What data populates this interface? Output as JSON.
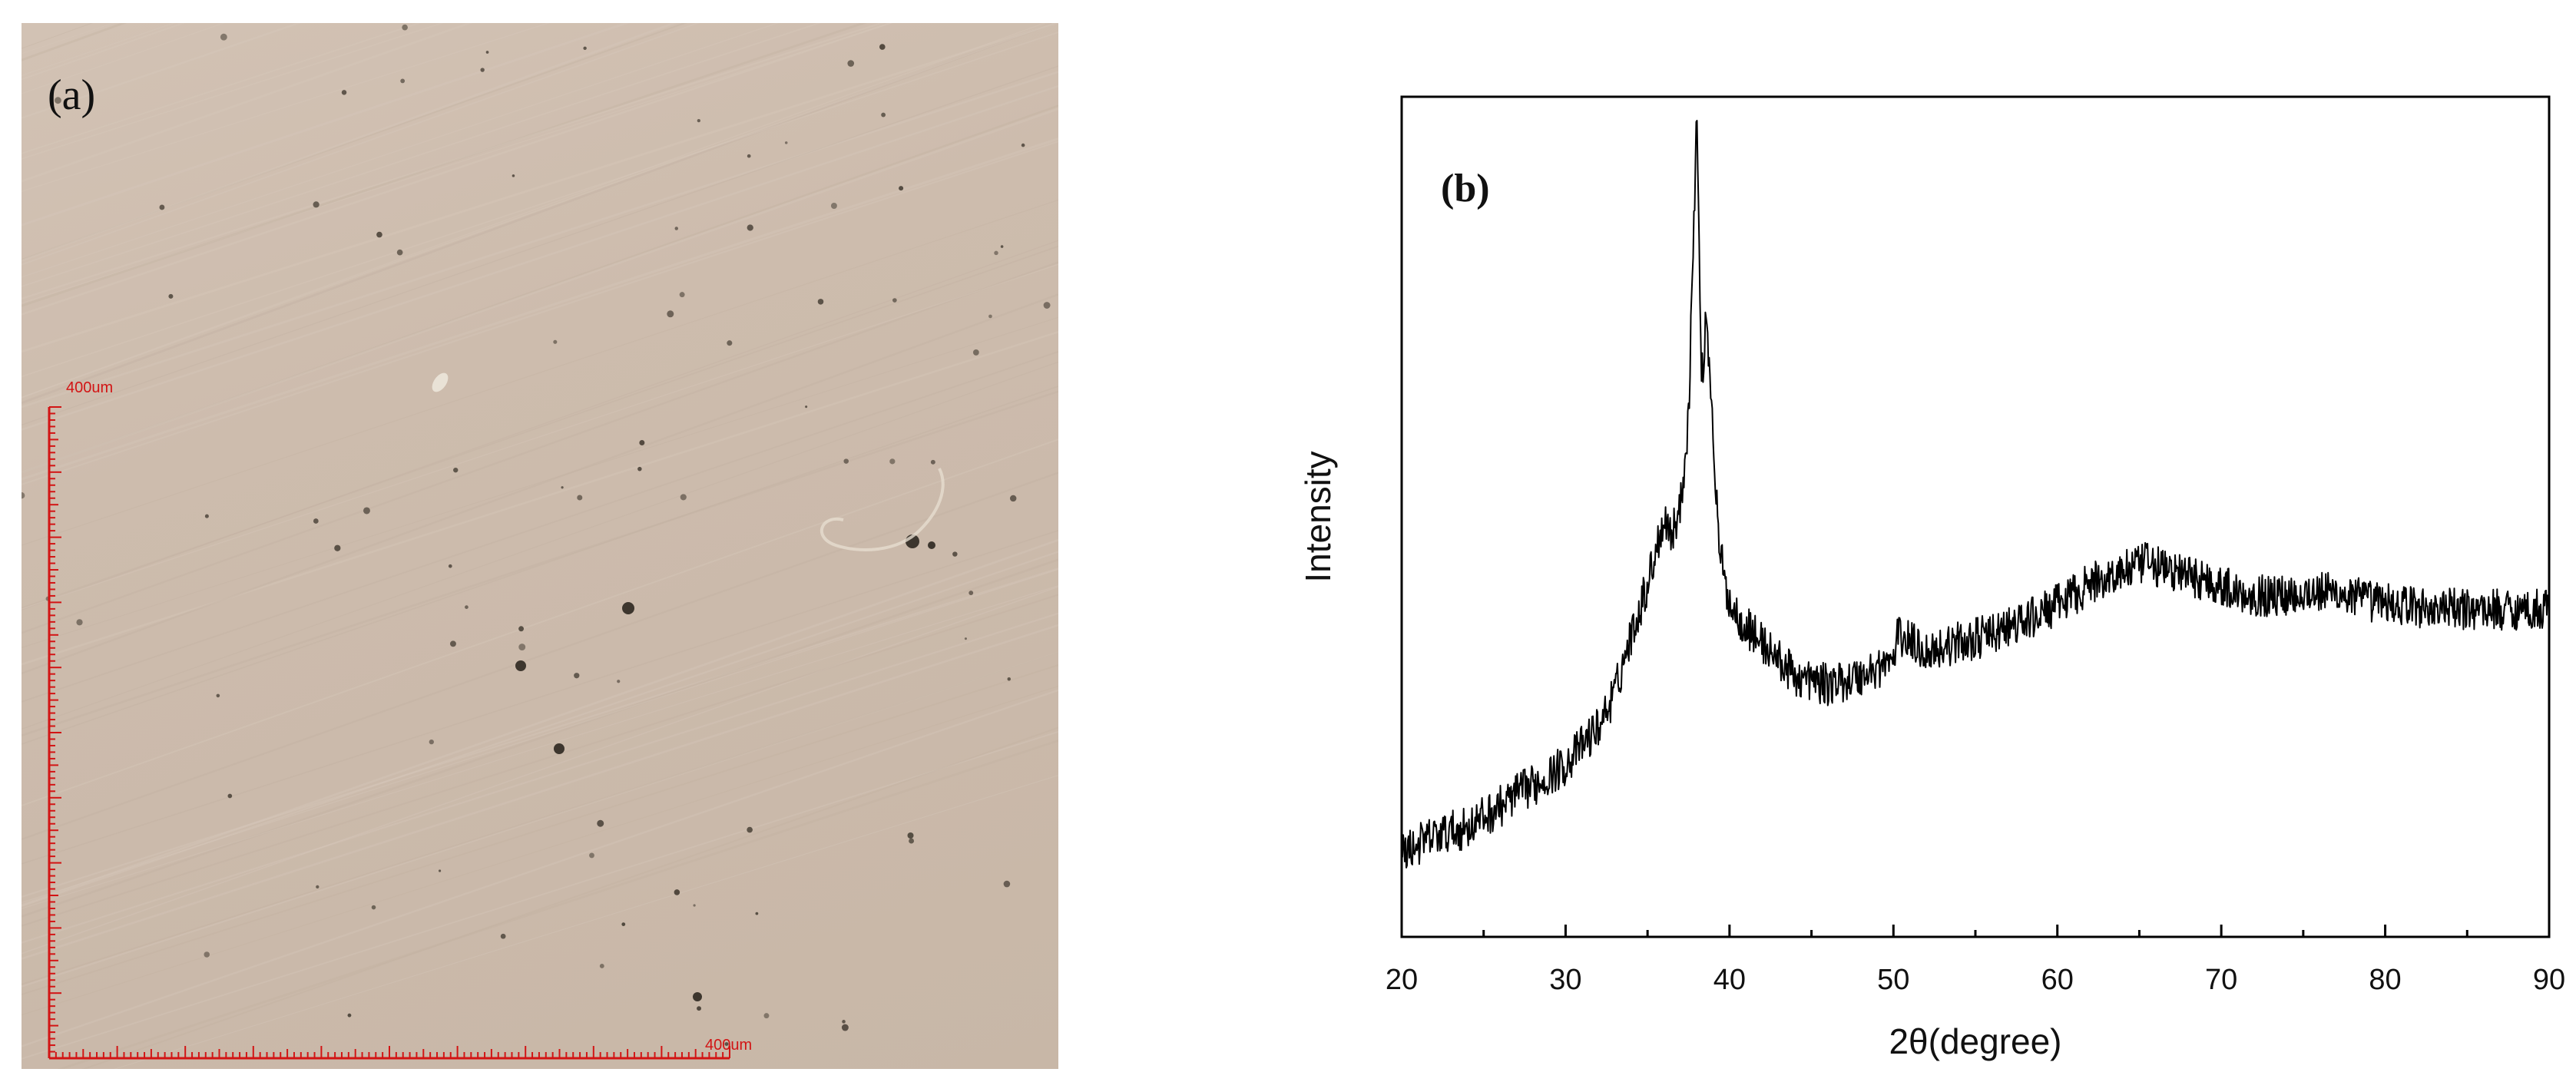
{
  "panel_a": {
    "label": "(a)",
    "scale_bar": {
      "vertical_label": "400um",
      "horizontal_label": "400um",
      "length_um": 400,
      "color": "#d21414"
    },
    "background_color": "#cbbaab"
  },
  "chart_data": {
    "type": "line",
    "panel_label": "(b)",
    "title": "",
    "xlabel": "2θ(degree)",
    "ylabel": "Intensity",
    "xlim": [
      20,
      90
    ],
    "ylim": [
      0,
      100
    ],
    "xticks": [
      20,
      30,
      40,
      50,
      60,
      70,
      80,
      90
    ],
    "y_tick_labels_shown": false,
    "grid": false,
    "legend": "none",
    "line_color": "#000000",
    "series": [
      {
        "x": [
          20,
          22,
          24,
          26,
          27,
          28,
          30,
          32,
          33,
          34,
          35,
          36,
          36.5,
          37,
          37.5,
          38,
          38.3,
          38.6,
          38.9,
          39.3,
          39.7,
          40.2,
          41,
          42,
          43,
          44,
          45,
          46,
          48,
          50,
          50.3,
          52,
          54,
          56,
          58,
          60,
          62,
          64,
          65.5,
          67,
          69,
          71,
          73,
          75,
          77,
          79,
          81,
          83,
          85,
          87,
          90
        ],
        "y": [
          10,
          12,
          13,
          15.5,
          17,
          18,
          20.5,
          25,
          29,
          36,
          42,
          50,
          48,
          51,
          62,
          98,
          66,
          74,
          64,
          48,
          42,
          39,
          37,
          35,
          33,
          31,
          30.5,
          30,
          31,
          33,
          36,
          34,
          35,
          36,
          37.5,
          39.5,
          42,
          43.5,
          44.5,
          43.5,
          42.5,
          41,
          40.5,
          41,
          41,
          40,
          39.5,
          39,
          39,
          39,
          39
        ]
      }
    ]
  }
}
